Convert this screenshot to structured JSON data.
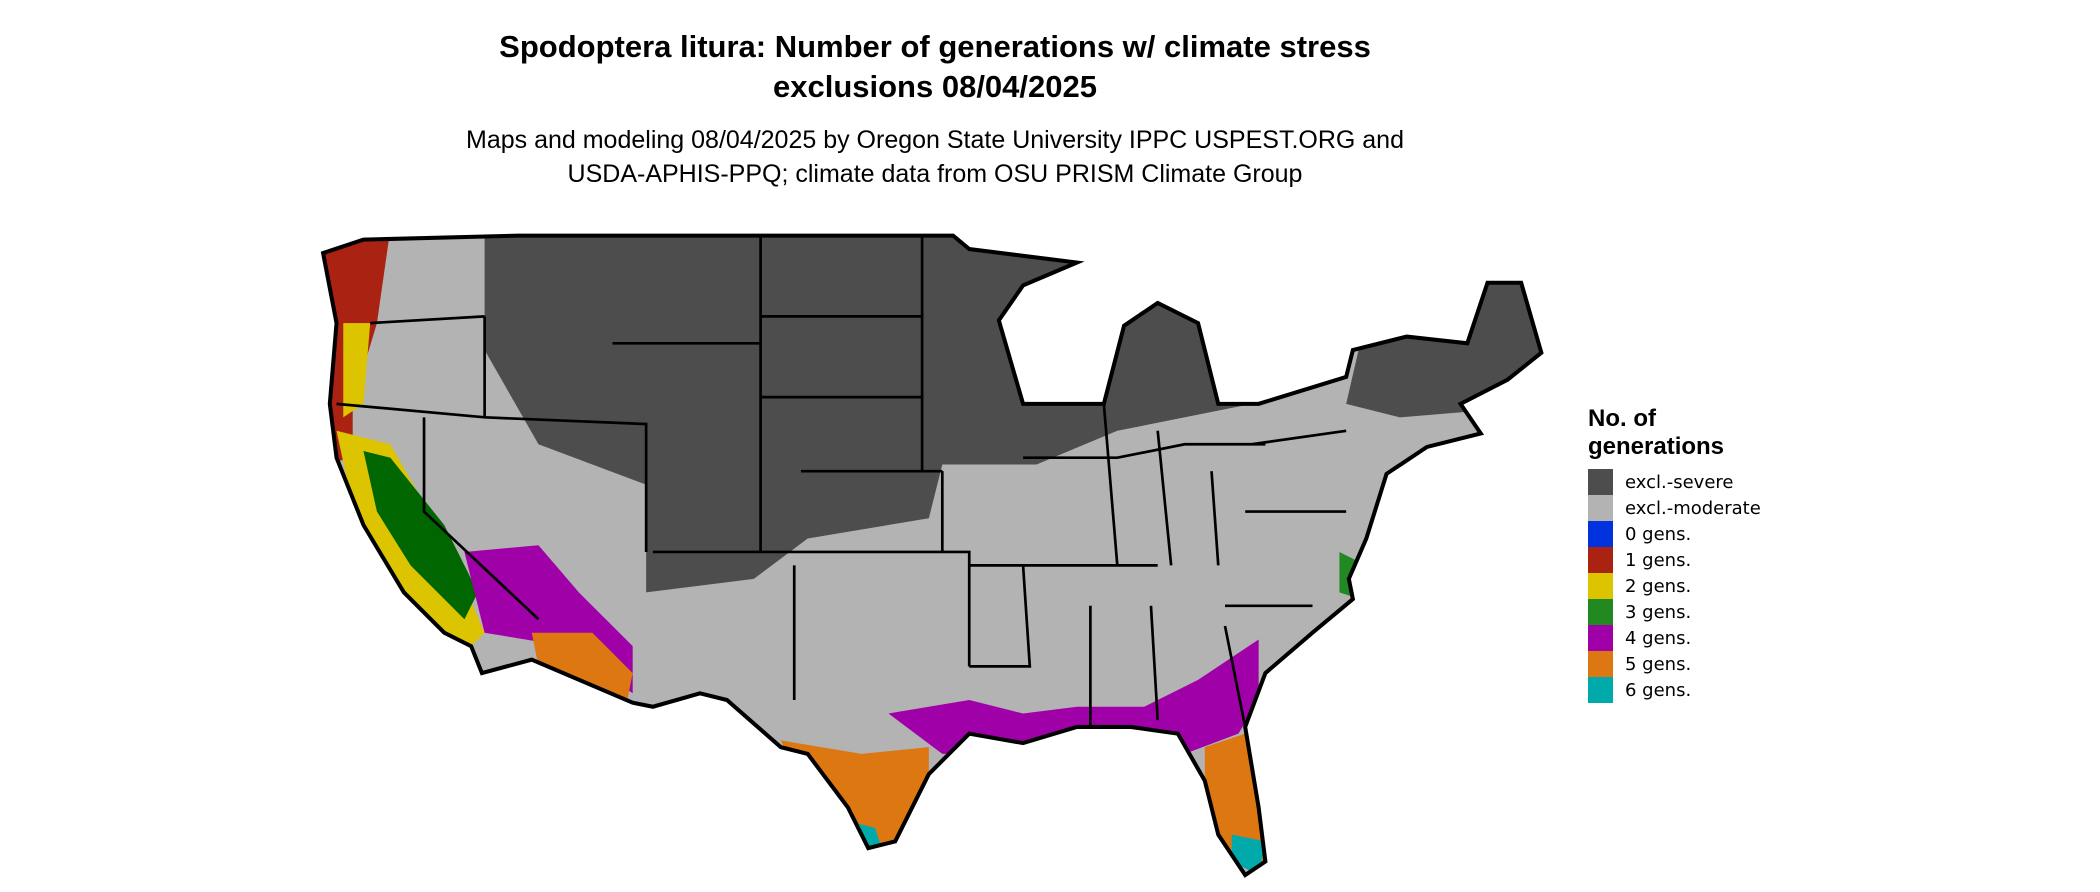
{
  "title": [
    "Spodoptera litura: Number of generations w/ climate stress",
    "exclusions 08/04/2025"
  ],
  "subtitle": [
    "Maps and modeling 08/04/2025 by Oregon State University IPPC USPEST.ORG and",
    "USDA-APHIS-PPQ; climate data from OSU PRISM Climate Group"
  ],
  "legend": {
    "title": [
      "No. of",
      "generations"
    ],
    "items": [
      {
        "label": "excl.-severe",
        "color": "#4d4d4d"
      },
      {
        "label": "excl.-moderate",
        "color": "#b3b3b3"
      },
      {
        "label": "0 gens.",
        "color": "#0033dd"
      },
      {
        "label": "1 gens.",
        "color": "#aa2211"
      },
      {
        "label": "2 gens.",
        "color": "#ddc400"
      },
      {
        "label": "3 gens.",
        "color": "#228822"
      },
      {
        "label": "4 gens.",
        "color": "#a000a8"
      },
      {
        "label": "5 gens.",
        "color": "#dd7711"
      },
      {
        "label": "6 gens.",
        "color": "#00aaaa"
      }
    ]
  }
}
